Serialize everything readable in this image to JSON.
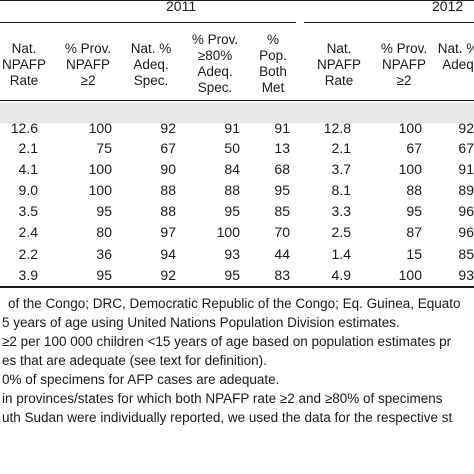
{
  "years": [
    "2011",
    "2012"
  ],
  "headers": [
    [
      "Nat.",
      "NPAFP",
      "Rate"
    ],
    [
      "% Prov.",
      "NPAFP",
      "≥2"
    ],
    [
      "Nat. %",
      "Adeq.",
      "Spec."
    ],
    [
      "% Prov.",
      "≥80%",
      "Adeq.",
      "Spec."
    ],
    [
      "%",
      "Pop.",
      "Both",
      "Met"
    ],
    [
      "Nat.",
      "NPAFP",
      "Rate"
    ],
    [
      "% Prov.",
      "NPAFP",
      "≥2"
    ],
    [
      "Nat. %",
      "Adeq"
    ]
  ],
  "rows": [
    [
      "12.6",
      "100",
      "92",
      "91",
      "91",
      "12.8",
      "100",
      "92"
    ],
    [
      "2.1",
      "75",
      "67",
      "50",
      "13",
      "2.1",
      "67",
      "67"
    ],
    [
      "4.1",
      "100",
      "90",
      "84",
      "68",
      "3.7",
      "100",
      "91"
    ],
    [
      "9.0",
      "100",
      "88",
      "88",
      "95",
      "8.1",
      "88",
      "89"
    ],
    [
      "3.5",
      "95",
      "88",
      "95",
      "85",
      "3.3",
      "95",
      "96"
    ],
    [
      "2.4",
      "80",
      "97",
      "100",
      "70",
      "2.5",
      "87",
      "96"
    ],
    [
      "2.2",
      "36",
      "94",
      "93",
      "44",
      "1.4",
      "15",
      "85"
    ],
    [
      "3.9",
      "95",
      "92",
      "95",
      "83",
      "4.9",
      "100",
      "93"
    ]
  ],
  "footnotes": [
    "of the Congo; DRC, Democratic Republic of the Congo; Eq. Guinea, Equato",
    "5 years of age using United Nations Population Division estimates.",
    "≥2 per 100 000 children <15 years of age based on population estimates pr",
    "es that are adequate (see text for definition).",
    "0% of specimens for AFP cases are adequate.",
    "in provinces/states for which both NPAFP rate ≥2 and ≥80% of specimens",
    "uth Sudan were individually reported, we used the data for the respective st"
  ]
}
